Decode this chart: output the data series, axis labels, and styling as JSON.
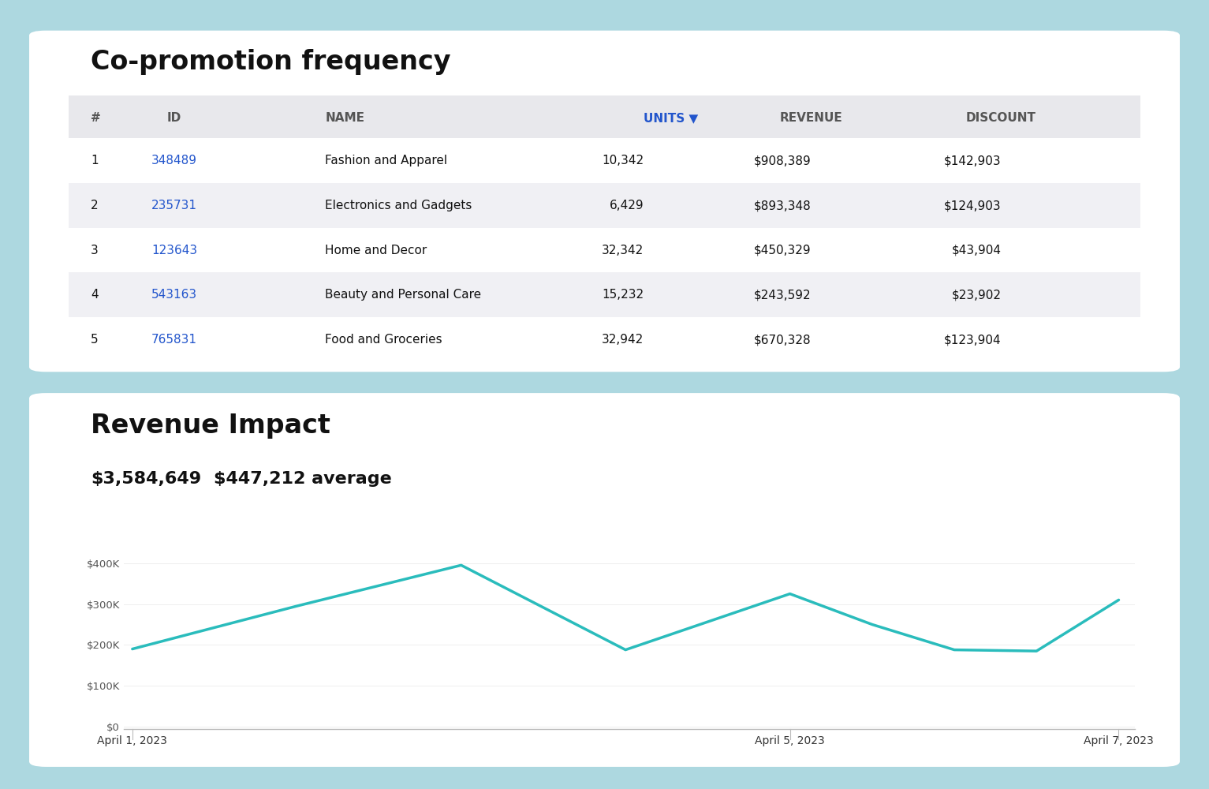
{
  "bg_color": "#add8e0",
  "panel_color": "#ffffff",
  "table_title": "Co-promotion frequency",
  "table_headers": [
    "#",
    "ID",
    "NAME",
    "UNITS ▼",
    "REVENUE",
    "DISCOUNT"
  ],
  "table_rows": [
    [
      "1",
      "348489",
      "Fashion and Apparel",
      "10,342",
      "$908,389",
      "$142,903"
    ],
    [
      "2",
      "235731",
      "Electronics and Gadgets",
      "6,429",
      "$893,348",
      "$124,903"
    ],
    [
      "3",
      "123643",
      "Home and Decor",
      "32,342",
      "$450,329",
      "$43,904"
    ],
    [
      "4",
      "543163",
      "Beauty and Personal Care",
      "15,232",
      "$243,592",
      "$23,902"
    ],
    [
      "5",
      "765831",
      "Food and Groceries",
      "32,942",
      "$670,328",
      "$123,904"
    ]
  ],
  "id_color": "#2255cc",
  "header_bg": "#e8e8ec",
  "row_bg_alt": "#f0f0f4",
  "row_bg_main": "#ffffff",
  "chart_title": "Revenue Impact",
  "chart_total": "$3,584,649",
  "chart_average": "$447,212 average",
  "line_color": "#2abcbc",
  "line_width": 2.5,
  "x_tick_labels": [
    "April 1, 2023",
    "April 5, 2023",
    "April 7, 2023"
  ],
  "x_tick_positions": [
    0,
    4,
    6
  ],
  "y_values": [
    190000,
    295000,
    395000,
    188000,
    325000,
    250000,
    188000,
    185000,
    310000
  ],
  "x_positions": [
    0,
    1,
    2,
    3,
    4,
    4.5,
    5,
    5.5,
    6
  ],
  "yticks": [
    0,
    100000,
    200000,
    300000,
    400000
  ],
  "ytick_labels": [
    "$0",
    "$100K",
    "$200K",
    "$300K",
    "$400K"
  ],
  "ylim": [
    -5000,
    430000
  ],
  "xlim": [
    -0.05,
    6.1
  ]
}
